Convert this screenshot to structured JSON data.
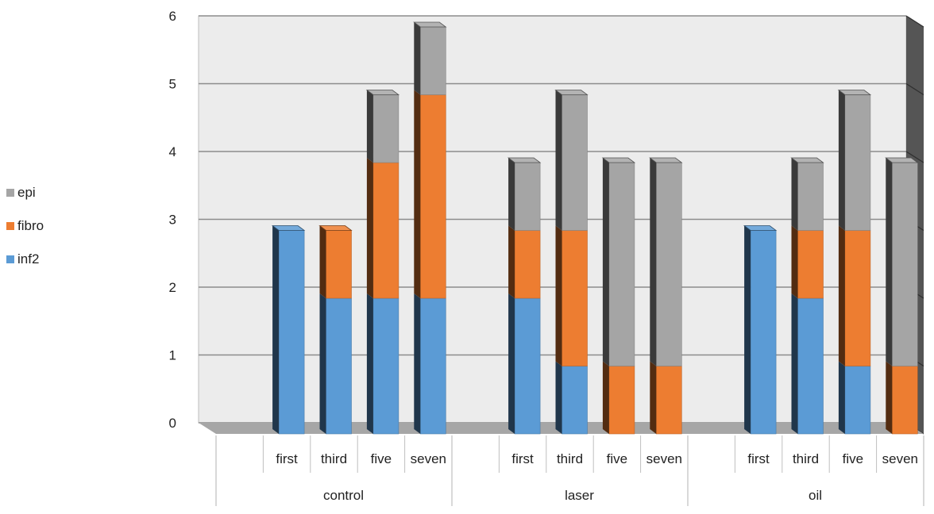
{
  "chart_data": {
    "type": "bar",
    "stacked": true,
    "three_d": true,
    "groups": [
      {
        "name": "control",
        "categories": [
          "first",
          "third",
          "five",
          "seven"
        ]
      },
      {
        "name": "laser",
        "categories": [
          "first",
          "third",
          "five",
          "seven"
        ]
      },
      {
        "name": "oil",
        "categories": [
          "first",
          "third",
          "five",
          "seven"
        ]
      }
    ],
    "series": [
      {
        "name": "inf2",
        "color": "#5b9bd5",
        "values": [
          3,
          2,
          2,
          2,
          2,
          1,
          0,
          0,
          3,
          2,
          1,
          0
        ]
      },
      {
        "name": "fibro",
        "color": "#ed7d31",
        "values": [
          0,
          1,
          2,
          3,
          1,
          2,
          1,
          1,
          0,
          1,
          2,
          1
        ]
      },
      {
        "name": "epi",
        "color": "#a5a5a5",
        "values": [
          0,
          0,
          1,
          1,
          1,
          2,
          3,
          3,
          0,
          1,
          2,
          3
        ]
      }
    ],
    "ylim": [
      0,
      6
    ],
    "yticks": [
      0,
      1,
      2,
      3,
      4,
      5,
      6
    ],
    "grid": true,
    "legend_position": "left",
    "title": "",
    "xlabel": "",
    "ylabel": ""
  }
}
